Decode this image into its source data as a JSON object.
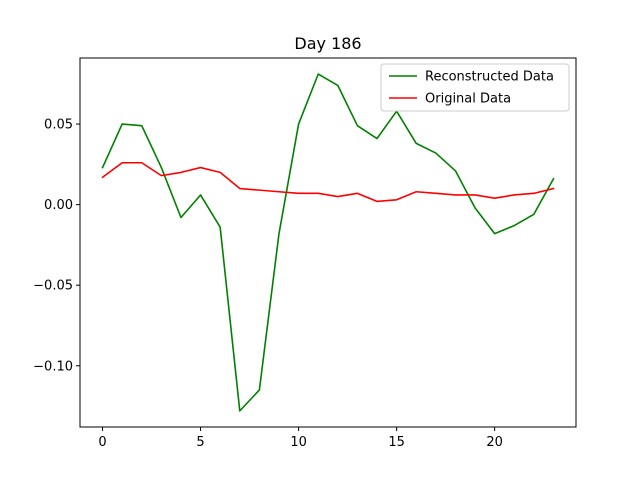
{
  "chart_data": {
    "type": "line",
    "title": "Day 186",
    "xlabel": "",
    "ylabel": "",
    "xlim": [
      -1.15,
      24.15
    ],
    "ylim": [
      -0.138,
      0.091
    ],
    "xticks": [
      0,
      5,
      10,
      15,
      20
    ],
    "xtick_labels": [
      "0",
      "5",
      "10",
      "15",
      "20"
    ],
    "yticks": [
      -0.1,
      -0.05,
      0.0,
      0.05
    ],
    "ytick_labels": [
      "−0.10",
      "−0.05",
      "0.00",
      "0.05"
    ],
    "grid": false,
    "legend_position": "top-right",
    "x": [
      0,
      1,
      2,
      3,
      4,
      5,
      6,
      7,
      8,
      9,
      10,
      11,
      12,
      13,
      14,
      15,
      16,
      17,
      18,
      19,
      20,
      21,
      22,
      23
    ],
    "series": [
      {
        "name": "Reconstructed Data",
        "color": "#008000",
        "values": [
          0.023,
          0.05,
          0.049,
          0.023,
          -0.008,
          0.006,
          -0.014,
          -0.128,
          -0.115,
          -0.018,
          0.05,
          0.081,
          0.074,
          0.049,
          0.041,
          0.058,
          0.038,
          0.032,
          0.021,
          -0.002,
          -0.018,
          -0.013,
          -0.006,
          0.016
        ]
      },
      {
        "name": "Original Data",
        "color": "#ff0000",
        "values": [
          0.017,
          0.026,
          0.026,
          0.018,
          0.02,
          0.023,
          0.02,
          0.01,
          0.009,
          0.008,
          0.007,
          0.007,
          0.005,
          0.007,
          0.002,
          0.003,
          0.008,
          0.007,
          0.006,
          0.006,
          0.004,
          0.006,
          0.007,
          0.01
        ]
      }
    ]
  }
}
